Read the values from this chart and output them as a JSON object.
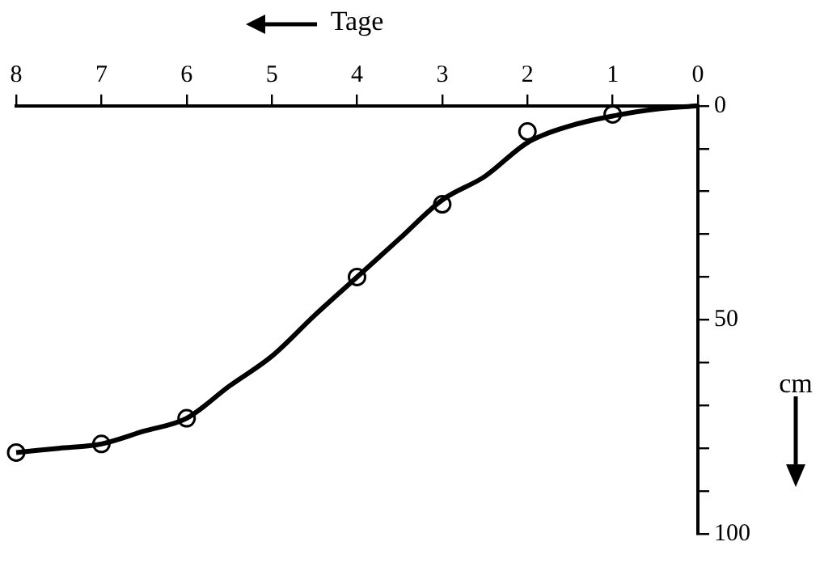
{
  "chart_data": {
    "type": "line",
    "xlabel": "Tage",
    "ylabel": "cm",
    "xlim": [
      8,
      0
    ],
    "xticks": [
      0,
      1,
      2,
      3,
      4,
      5,
      6,
      7,
      8
    ],
    "ylim": [
      100,
      0
    ],
    "yticks": [
      0,
      {
        "value": 10,
        "label": null
      },
      {
        "value": 20,
        "label": null
      },
      {
        "value": 30,
        "label": null
      },
      {
        "value": 40,
        "label": null
      },
      50,
      {
        "value": 60,
        "label": null
      },
      {
        "value": 70,
        "label": null
      },
      {
        "value": 80,
        "label": null
      },
      {
        "value": 90,
        "label": null
      },
      100
    ],
    "series": [
      {
        "color": "#000000",
        "marker": "none",
        "x": [
          0,
          0.5,
          1,
          1.5,
          2,
          2.5,
          3,
          3.5,
          4,
          4.5,
          5,
          5.5,
          6,
          6.5,
          7,
          7.5,
          8
        ],
        "values": [
          0,
          0.8,
          2.4,
          4.7,
          8.6,
          16.5,
          22,
          31,
          40,
          49,
          58.5,
          65.5,
          73,
          76,
          79,
          80,
          81
        ]
      },
      {
        "type": "scatter",
        "color": "#000000",
        "marker": "circle",
        "x": [
          1,
          2,
          3,
          4,
          6,
          7,
          8
        ],
        "values": [
          2,
          6,
          23,
          40,
          73,
          79,
          81
        ]
      }
    ]
  }
}
